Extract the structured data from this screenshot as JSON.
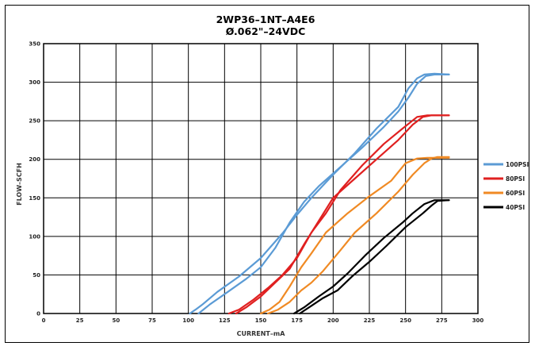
{
  "chart_data": {
    "type": "line",
    "title": "2WP36–1NT–A4E6",
    "subtitle": "Ø.062\"–24VDC",
    "xlabel": "CURRENT–mA",
    "ylabel": "FLOW–SCFH",
    "xlim": [
      0,
      300
    ],
    "ylim": [
      0,
      350
    ],
    "xticks": [
      "0",
      "25",
      "50",
      "75",
      "100",
      "125",
      "150",
      "175",
      "200",
      "225",
      "250",
      "275",
      "300"
    ],
    "yticks": [
      "0",
      "50",
      "100",
      "150",
      "200",
      "250",
      "300",
      "350"
    ],
    "grid": true,
    "legend_position": "right",
    "series": [
      {
        "name": "100PSI",
        "color": "#5b9bd5",
        "curves": [
          [
            [
              101,
              0
            ],
            [
              105,
              5
            ],
            [
              110,
              12
            ],
            [
              120,
              28
            ],
            [
              135,
              48
            ],
            [
              150,
              72
            ],
            [
              165,
              104
            ],
            [
              175,
              128
            ],
            [
              185,
              150
            ],
            [
              200,
              180
            ],
            [
              215,
              208
            ],
            [
              230,
              240
            ],
            [
              245,
              268
            ],
            [
              252,
              292
            ],
            [
              258,
              305
            ],
            [
              263,
              310
            ],
            [
              270,
              311
            ],
            [
              280,
              310
            ]
          ],
          [
            [
              107,
              0
            ],
            [
              115,
              12
            ],
            [
              125,
              25
            ],
            [
              140,
              45
            ],
            [
              150,
              60
            ],
            [
              160,
              85
            ],
            [
              170,
              118
            ],
            [
              180,
              145
            ],
            [
              190,
              165
            ],
            [
              205,
              190
            ],
            [
              220,
              215
            ],
            [
              235,
              242
            ],
            [
              245,
              262
            ],
            [
              252,
              280
            ],
            [
              258,
              298
            ],
            [
              264,
              308
            ],
            [
              270,
              310
            ],
            [
              280,
              310
            ]
          ]
        ]
      },
      {
        "name": "80PSI",
        "color": "#e02020",
        "curves": [
          [
            [
              128,
              0
            ],
            [
              135,
              5
            ],
            [
              145,
              18
            ],
            [
              155,
              33
            ],
            [
              165,
              50
            ],
            [
              175,
              72
            ],
            [
              185,
              105
            ],
            [
              195,
              130
            ],
            [
              205,
              160
            ],
            [
              220,
              192
            ],
            [
              235,
              220
            ],
            [
              248,
              240
            ],
            [
              258,
              255
            ],
            [
              265,
              257
            ],
            [
              280,
              257
            ]
          ],
          [
            [
              133,
              0
            ],
            [
              140,
              8
            ],
            [
              150,
              22
            ],
            [
              160,
              40
            ],
            [
              170,
              58
            ],
            [
              180,
              90
            ],
            [
              190,
              120
            ],
            [
              200,
              150
            ],
            [
              215,
              175
            ],
            [
              230,
              200
            ],
            [
              245,
              225
            ],
            [
              255,
              245
            ],
            [
              262,
              255
            ],
            [
              268,
              257
            ],
            [
              280,
              257
            ]
          ]
        ]
      },
      {
        "name": "60PSI",
        "color": "#f08a24",
        "curves": [
          [
            [
              150,
              0
            ],
            [
              156,
              5
            ],
            [
              163,
              15
            ],
            [
              170,
              35
            ],
            [
              178,
              60
            ],
            [
              185,
              78
            ],
            [
              195,
              105
            ],
            [
              210,
              130
            ],
            [
              225,
              152
            ],
            [
              240,
              172
            ],
            [
              250,
              195
            ],
            [
              258,
              201
            ],
            [
              265,
              202
            ],
            [
              280,
              202
            ]
          ],
          [
            [
              155,
              0
            ],
            [
              162,
              5
            ],
            [
              170,
              15
            ],
            [
              178,
              30
            ],
            [
              185,
              40
            ],
            [
              193,
              55
            ],
            [
              205,
              82
            ],
            [
              215,
              105
            ],
            [
              230,
              130
            ],
            [
              245,
              158
            ],
            [
              255,
              180
            ],
            [
              263,
              195
            ],
            [
              268,
              201
            ],
            [
              272,
              203
            ],
            [
              280,
              203
            ]
          ]
        ]
      },
      {
        "name": "40PSI",
        "color": "#000000",
        "curves": [
          [
            [
              173,
              0
            ],
            [
              180,
              8
            ],
            [
              190,
              22
            ],
            [
              200,
              35
            ],
            [
              210,
              52
            ],
            [
              222,
              75
            ],
            [
              235,
              98
            ],
            [
              248,
              118
            ],
            [
              255,
              130
            ],
            [
              263,
              142
            ],
            [
              270,
              147
            ],
            [
              280,
              147
            ]
          ],
          [
            [
              177,
              0
            ],
            [
              185,
              10
            ],
            [
              193,
              20
            ],
            [
              203,
              30
            ],
            [
              213,
              48
            ],
            [
              225,
              67
            ],
            [
              237,
              88
            ],
            [
              250,
              112
            ],
            [
              262,
              130
            ],
            [
              268,
              140
            ],
            [
              272,
              146
            ],
            [
              280,
              147
            ]
          ]
        ]
      }
    ]
  }
}
